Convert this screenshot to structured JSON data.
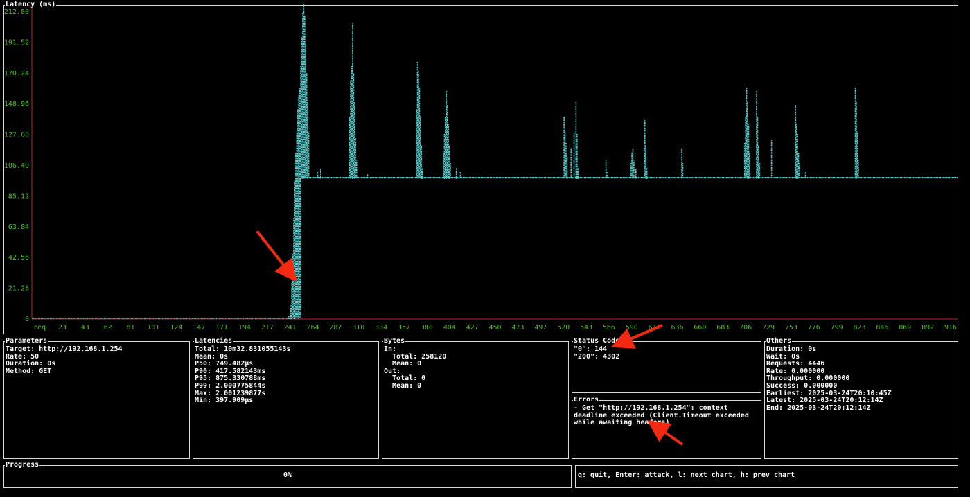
{
  "latency_panel": {
    "title": "Latency (ms)"
  },
  "chart_data": {
    "type": "scatter",
    "title": "Latency (ms)",
    "xlabel": "req",
    "ylabel": "",
    "y_ticks": [
      "0",
      "21.28",
      "42.56",
      "63.84",
      "85.12",
      "106.40",
      "127.68",
      "148.96",
      "170.24",
      "191.52",
      "212.80"
    ],
    "x_ticks": [
      "req",
      "23",
      "43",
      "62",
      "81",
      "101",
      "124",
      "147",
      "171",
      "194",
      "217",
      "241",
      "264",
      "287",
      "310",
      "334",
      "357",
      "380",
      "404",
      "427",
      "450",
      "473",
      "497",
      "520",
      "543",
      "566",
      "590",
      "613",
      "636",
      "660",
      "683",
      "706",
      "729",
      "753",
      "776",
      "799",
      "823",
      "846",
      "869",
      "892",
      "916"
    ],
    "ylim": [
      0,
      212.8
    ],
    "xlim": [
      0,
      928
    ],
    "baseline_segments": [
      {
        "x_start": 0,
        "x_end": 260,
        "y": 0.5
      },
      {
        "x_start": 270,
        "x_end": 928,
        "y": 98
      }
    ],
    "ramp": [
      [
        257,
        2
      ],
      [
        259,
        10
      ],
      [
        260,
        25
      ],
      [
        261,
        45
      ],
      [
        262,
        70
      ],
      [
        263,
        95
      ],
      [
        264,
        115
      ],
      [
        265,
        130
      ],
      [
        266,
        145
      ],
      [
        267,
        155
      ],
      [
        268,
        160
      ],
      [
        269,
        175
      ],
      [
        270,
        195
      ],
      [
        271,
        212
      ],
      [
        272,
        218
      ],
      [
        273,
        210
      ],
      [
        274,
        190
      ],
      [
        275,
        170
      ],
      [
        276,
        150
      ],
      [
        277,
        130
      ]
    ],
    "spikes": [
      {
        "x": 286,
        "y": 102
      },
      {
        "x": 289,
        "y": 104
      },
      {
        "x": 318,
        "y": 140
      },
      {
        "x": 319,
        "y": 165
      },
      {
        "x": 320,
        "y": 175
      },
      {
        "x": 321,
        "y": 205
      },
      {
        "x": 322,
        "y": 170
      },
      {
        "x": 323,
        "y": 150
      },
      {
        "x": 324,
        "y": 125
      },
      {
        "x": 325,
        "y": 110
      },
      {
        "x": 336,
        "y": 100
      },
      {
        "x": 385,
        "y": 145
      },
      {
        "x": 386,
        "y": 178
      },
      {
        "x": 387,
        "y": 172
      },
      {
        "x": 388,
        "y": 160
      },
      {
        "x": 389,
        "y": 140
      },
      {
        "x": 390,
        "y": 120
      },
      {
        "x": 391,
        "y": 105
      },
      {
        "x": 412,
        "y": 115
      },
      {
        "x": 413,
        "y": 128
      },
      {
        "x": 414,
        "y": 140
      },
      {
        "x": 415,
        "y": 158
      },
      {
        "x": 416,
        "y": 148
      },
      {
        "x": 417,
        "y": 135
      },
      {
        "x": 418,
        "y": 120
      },
      {
        "x": 419,
        "y": 108
      },
      {
        "x": 425,
        "y": 105
      },
      {
        "x": 429,
        "y": 102
      },
      {
        "x": 533,
        "y": 140
      },
      {
        "x": 534,
        "y": 130
      },
      {
        "x": 535,
        "y": 122
      },
      {
        "x": 536,
        "y": 112
      },
      {
        "x": 540,
        "y": 118
      },
      {
        "x": 543,
        "y": 130
      },
      {
        "x": 545,
        "y": 150
      },
      {
        "x": 546,
        "y": 128
      },
      {
        "x": 547,
        "y": 105
      },
      {
        "x": 575,
        "y": 110
      },
      {
        "x": 576,
        "y": 102
      },
      {
        "x": 600,
        "y": 108
      },
      {
        "x": 601,
        "y": 115
      },
      {
        "x": 602,
        "y": 118
      },
      {
        "x": 603,
        "y": 110
      },
      {
        "x": 605,
        "y": 104
      },
      {
        "x": 614,
        "y": 138
      },
      {
        "x": 615,
        "y": 120
      },
      {
        "x": 616,
        "y": 105
      },
      {
        "x": 651,
        "y": 118
      },
      {
        "x": 652,
        "y": 108
      },
      {
        "x": 714,
        "y": 122
      },
      {
        "x": 715,
        "y": 140
      },
      {
        "x": 716,
        "y": 160
      },
      {
        "x": 717,
        "y": 150
      },
      {
        "x": 718,
        "y": 135
      },
      {
        "x": 719,
        "y": 115
      },
      {
        "x": 726,
        "y": 158
      },
      {
        "x": 727,
        "y": 140
      },
      {
        "x": 728,
        "y": 120
      },
      {
        "x": 729,
        "y": 108
      },
      {
        "x": 741,
        "y": 124
      },
      {
        "x": 765,
        "y": 148
      },
      {
        "x": 766,
        "y": 135
      },
      {
        "x": 767,
        "y": 128
      },
      {
        "x": 768,
        "y": 115
      },
      {
        "x": 769,
        "y": 108
      },
      {
        "x": 775,
        "y": 102
      },
      {
        "x": 825,
        "y": 160
      },
      {
        "x": 826,
        "y": 150
      },
      {
        "x": 827,
        "y": 130
      },
      {
        "x": 828,
        "y": 110
      }
    ]
  },
  "parameters": {
    "title": "Parameters",
    "target": "Target: http://192.168.1.254",
    "rate": "Rate: 50",
    "duration": "Duration: 0s",
    "method": "Method: GET"
  },
  "latencies": {
    "title": "Latencies",
    "total": "Total: 10m32.831055143s",
    "mean": "Mean: 0s",
    "p50": "P50: 749.482µs",
    "p90": "P90: 417.582143ms",
    "p95": "P95: 875.330788ms",
    "p99": "P99: 2.000775844s",
    "max": "Max: 2.001239877s",
    "min": "Min: 397.909µs"
  },
  "bytes": {
    "title": "Bytes",
    "in_label": "In:",
    "in_total": "  Total: 258120",
    "in_mean": "  Mean: 0",
    "out_label": "Out:",
    "out_total": "  Total: 0",
    "out_mean": "  Mean: 0"
  },
  "status_codes": {
    "title": "Status Codes",
    "code_0": "\"0\": 144",
    "code_200": "\"200\": 4302"
  },
  "errors": {
    "title": "Errors",
    "message": "- Get \"http://192.168.1.254\": context deadline exceeded (Client.Timeout exceeded while awaiting headers)"
  },
  "others": {
    "title": "Others",
    "duration": "Duration: 0s",
    "wait": "Wait: 0s",
    "requests": "Requests: 4446",
    "rate": "Rate: 0.000000",
    "throughput": "Throughput: 0.000000",
    "success": "Success: 0.000000",
    "earliest": "Earliest: 2025-03-24T20:10:45Z",
    "latest": "Latest: 2025-03-24T20:12:14Z",
    "end": "End: 2025-03-24T20:12:14Z"
  },
  "progress": {
    "title": "Progress",
    "percent_text": "0%",
    "value": 0
  },
  "help": {
    "text": "q: quit, Enter: attack, l: next chart, h: prev chart"
  },
  "colors": {
    "axis": "#cc1f1f",
    "tick_label": "#4cc21e",
    "data": "#5fd3d3",
    "border": "#d9d9d9",
    "annotation_arrow": "#f22a12"
  }
}
